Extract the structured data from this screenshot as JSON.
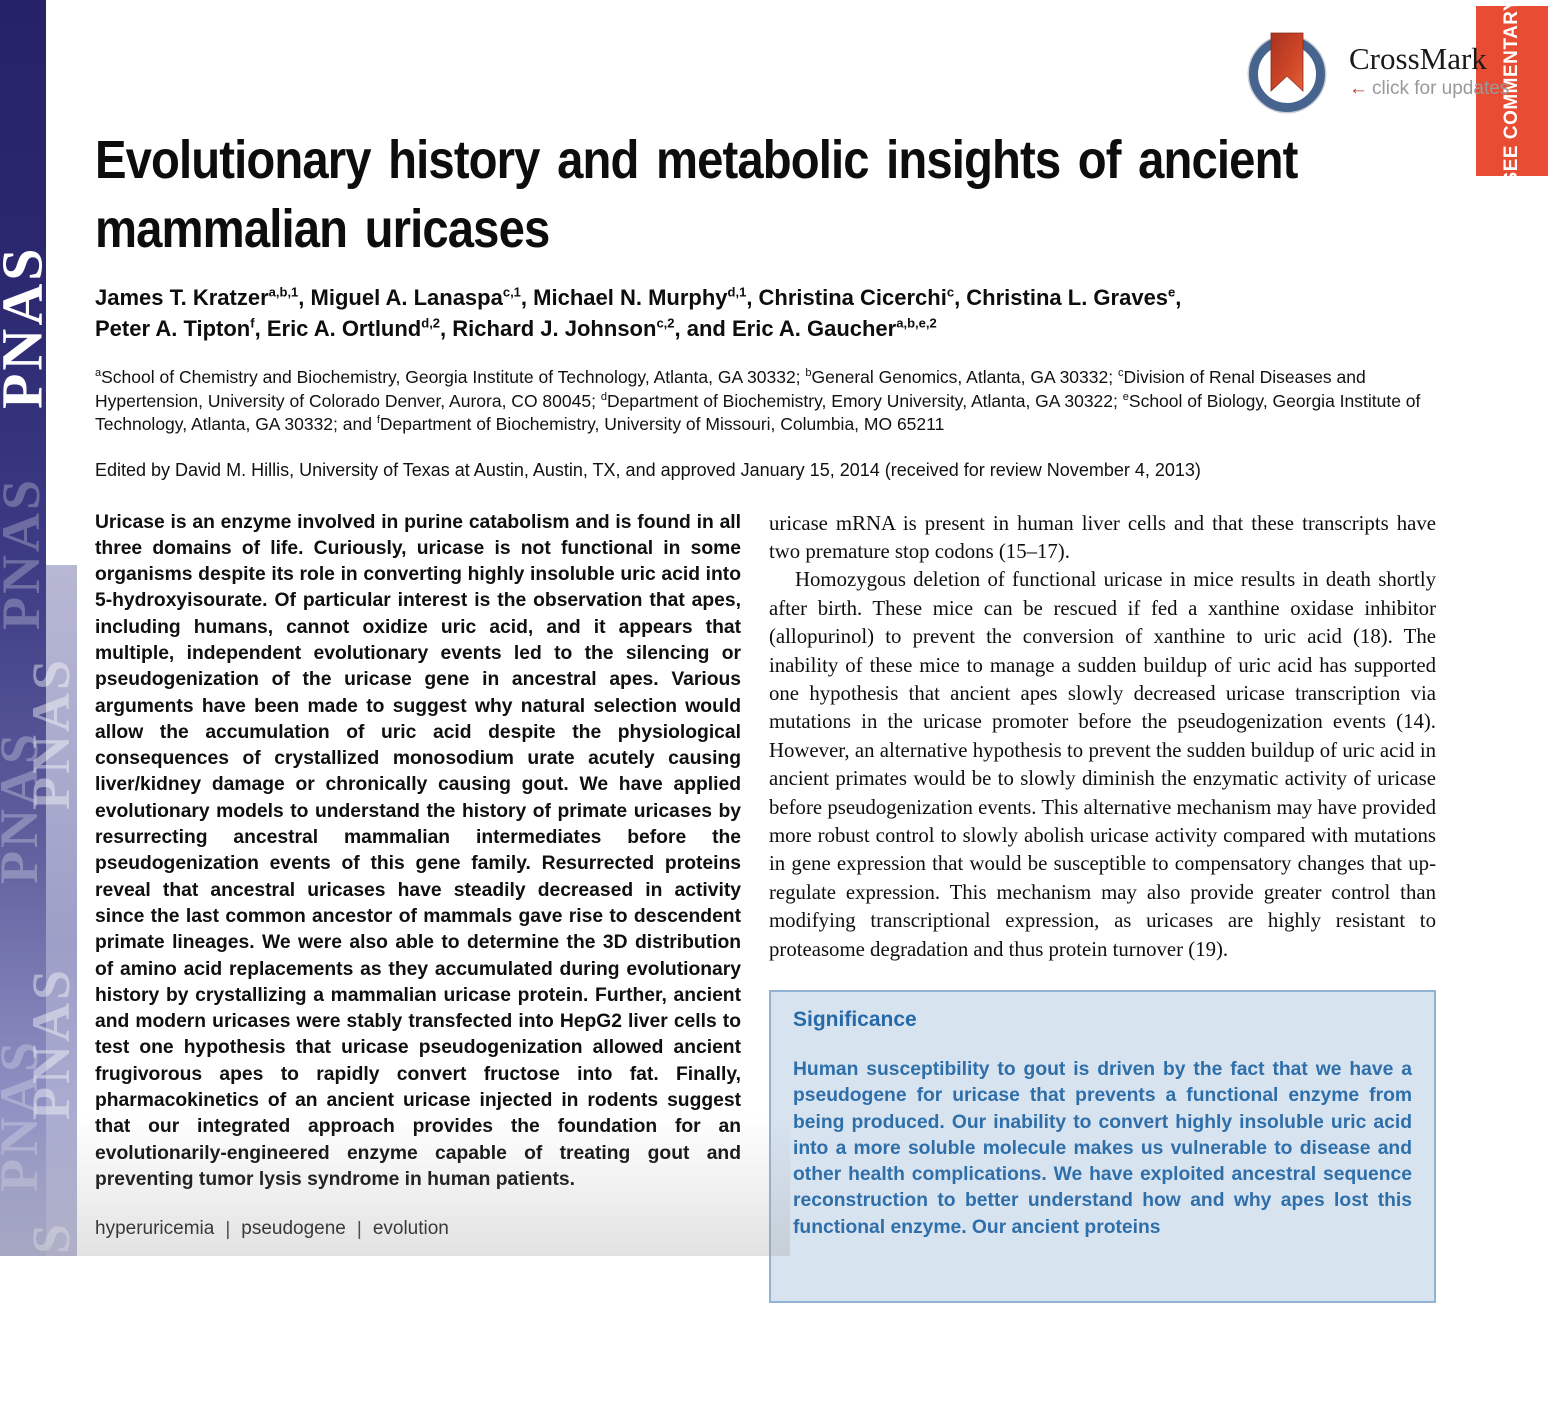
{
  "sidebar": {
    "logo": "PNAS"
  },
  "banner": {
    "label": "SEE COMMENTARY",
    "color": "#e84c33"
  },
  "crossmark": {
    "name": "CrossMark",
    "arrow": "←",
    "tagline": "click for updates"
  },
  "article": {
    "title": "Evolutionary history and metabolic insights of ancient mammalian uricases",
    "title_lines": [
      "Evolutionary history and metabolic insights of ancient",
      "mammalian uricases"
    ],
    "authors": [
      {
        "name": "James T. Kratzer",
        "sup": "a,b,1",
        "post": ", "
      },
      {
        "name": "Miguel A. Lanaspa",
        "sup": "c,1",
        "post": ", "
      },
      {
        "name": "Michael N. Murphy",
        "sup": "d,1",
        "post": ", "
      },
      {
        "name": "Christina Cicerchi",
        "sup": "c",
        "post": ", "
      },
      {
        "name": "Christina L. Graves",
        "sup": "e",
        "post": ",",
        "br": true
      },
      {
        "name": "Peter A. Tipton",
        "sup": "f",
        "post": ", "
      },
      {
        "name": "Eric A. Ortlund",
        "sup": "d,2",
        "post": ", "
      },
      {
        "name": "Richard J. Johnson",
        "sup": "c,2",
        "post": ", "
      },
      {
        "pre": "and ",
        "name": "Eric A. Gaucher",
        "sup": "a,b,e,2",
        "post": ""
      }
    ],
    "affiliations": [
      {
        "sup": "a",
        "text": "School of Chemistry and Biochemistry, Georgia Institute of Technology, Atlanta, GA 30332; "
      },
      {
        "sup": "b",
        "text": "General Genomics, Atlanta, GA 30332; "
      },
      {
        "sup": "c",
        "text": "Division of Renal Diseases and Hypertension, University of Colorado Denver, Aurora, CO 80045; "
      },
      {
        "sup": "d",
        "text": "Department of Biochemistry, Emory University, Atlanta, GA 30322; "
      },
      {
        "sup": "e",
        "text": "School of Biology, Georgia Institute of Technology, Atlanta, GA 30332; and "
      },
      {
        "sup": "f",
        "text": "Department of Biochemistry, University of Missouri, Columbia, MO 65211"
      }
    ],
    "edited_by": "Edited by David M. Hillis, University of Texas at Austin, Austin, TX, and approved January 15, 2014 (received for review November 4, 2013)",
    "abstract": "Uricase is an enzyme involved in purine catabolism and is found in all three domains of life. Curiously, uricase is not functional in some organisms despite its role in converting highly insoluble uric acid into 5-hydroxyisourate. Of particular interest is the observation that apes, including humans, cannot oxidize uric acid, and it appears that multiple, independent evolutionary events led to the silencing or pseudogenization of the uricase gene in ancestral apes. Various arguments have been made to suggest why natural selection would allow the accumulation of uric acid despite the physiological consequences of crystallized monosodium urate acutely causing liver/kidney damage or chronically causing gout. We have applied evolutionary models to understand the history of primate uricases by resurrecting ancestral mammalian intermediates before the pseudogenization events of this gene family. Resurrected proteins reveal that ancestral uricases have steadily decreased in activity since the last common ancestor of mammals gave rise to descendent primate lineages. We were also able to determine the 3D distribution of amino acid replacements as they accumulated during evolutionary history by crystallizing a mammalian uricase protein. Further, ancient and modern uricases were stably transfected into HepG2 liver cells to test one hypothesis that uricase pseudogenization allowed ancient frugivorous apes to rapidly convert fructose into fat. Finally, pharmacokinetics of an ancient uricase injected in rodents suggest that our integrated approach provides the foundation for an evolutionarily-engineered enzyme capable of treating gout and preventing tumor lysis syndrome in human patients.",
    "keywords": [
      "hyperuricemia",
      "pseudogene",
      "evolution"
    ]
  },
  "main_text": {
    "paragraphs": [
      {
        "indent": false,
        "text": "uricase mRNA is present in human liver cells and that these transcripts have two premature stop codons (15–17)."
      },
      {
        "indent": true,
        "text": "Homozygous deletion of functional uricase in mice results in death shortly after birth. These mice can be rescued if fed a xanthine oxidase inhibitor (allopurinol) to prevent the conversion of xanthine to uric acid (18). The inability of these mice to manage a sudden buildup of uric acid has supported one hypothesis that ancient apes slowly decreased uricase transcription via mutations in the uricase promoter before the pseudogenization events (14). However, an alternative hypothesis to prevent the sudden buildup of uric acid in ancient primates would be to slowly diminish the enzymatic activity of uricase before pseudogenization events. This alternative mechanism may have provided more robust control to slowly abolish uricase activity compared with mutations in gene expression that would be susceptible to compensatory changes that up-regulate expression. This mechanism may also provide greater control than modifying transcriptional expression, as uricases are highly resistant to proteasome degradation and thus protein turnover (19)."
      }
    ]
  },
  "significance": {
    "heading": "Significance",
    "body": "Human susceptibility to gout is driven by the fact that we have a pseudogene for uricase that prevents a functional enzyme from being produced. Our inability to convert highly insoluble uric acid into a more soluble molecule makes us vulnerable to disease and other health complications. We have exploited ancestral sequence reconstruction to better understand how and why apes lost this functional enzyme. Our ancient proteins"
  }
}
